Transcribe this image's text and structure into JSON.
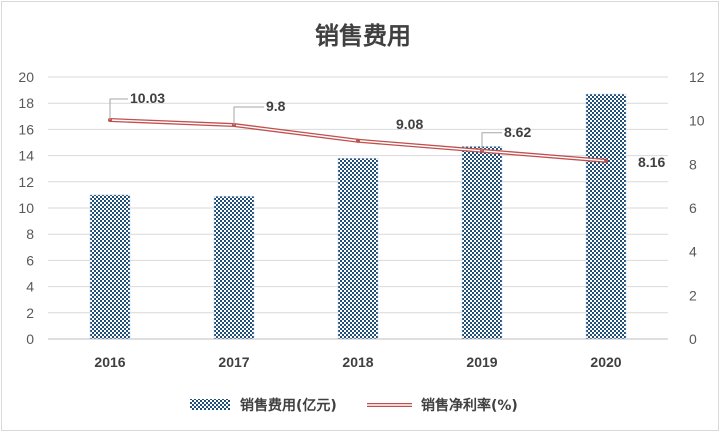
{
  "chart_data": {
    "type": "bar",
    "title": "销售费用",
    "categories": [
      "2016",
      "2017",
      "2018",
      "2019",
      "2020"
    ],
    "series": [
      {
        "name": "销售费用(亿元)",
        "type": "bar",
        "axis": "left",
        "values": [
          11.0,
          10.9,
          13.8,
          14.7,
          18.7
        ]
      },
      {
        "name": "销售净利率(%)",
        "type": "line",
        "axis": "right",
        "values": [
          10.03,
          9.8,
          9.08,
          8.62,
          8.16
        ],
        "labels": [
          "10.03",
          "9.8",
          "9.08",
          "8.62",
          "8.16"
        ]
      }
    ],
    "y_left": {
      "min": 0,
      "max": 20,
      "step": 2,
      "ticks": [
        "0",
        "2",
        "4",
        "6",
        "8",
        "10",
        "12",
        "14",
        "16",
        "18",
        "20"
      ]
    },
    "y_right": {
      "min": 0,
      "max": 12,
      "step": 2,
      "ticks": [
        "0",
        "2",
        "4",
        "6",
        "8",
        "10",
        "12"
      ]
    },
    "grid": true,
    "legend": "bottom",
    "colors": {
      "bar": "#1f4e79",
      "line": "#c0504d",
      "grid": "#d9d9d9"
    }
  }
}
